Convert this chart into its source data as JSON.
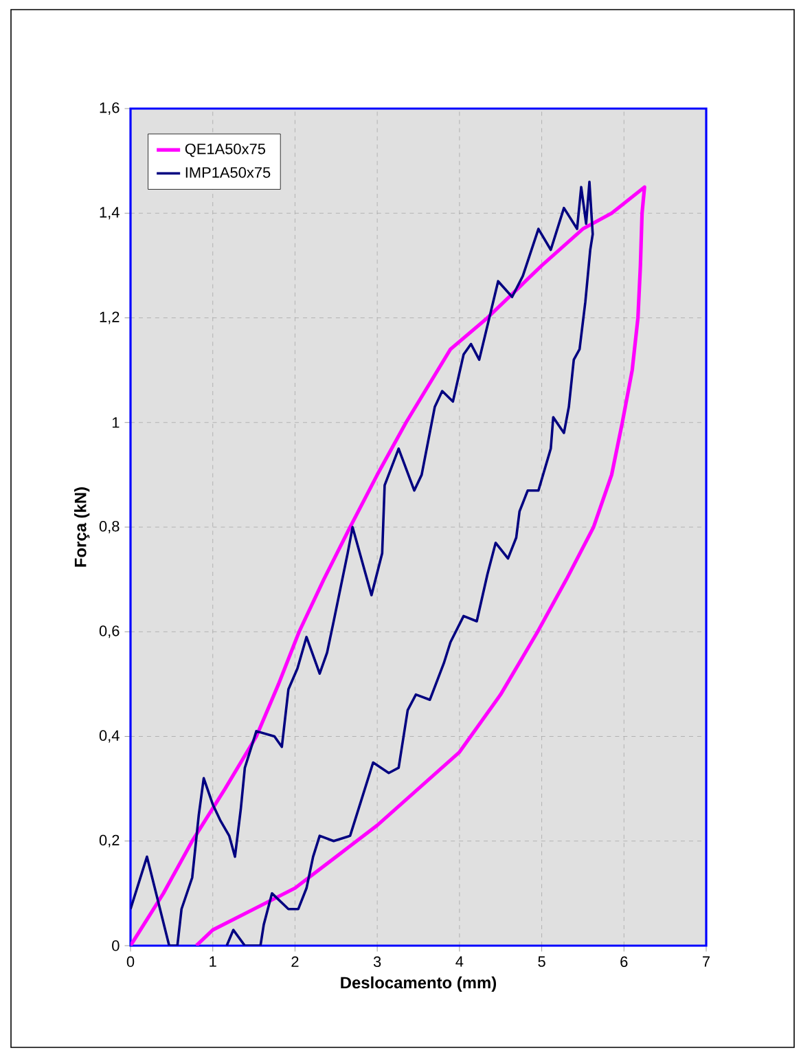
{
  "chart_data": {
    "type": "line",
    "xlabel": "Deslocamento (mm)",
    "ylabel": "Força (kN)",
    "xlim": [
      0,
      7
    ],
    "ylim": [
      0,
      1.6
    ],
    "xticks": [
      0,
      1,
      2,
      3,
      4,
      5,
      6,
      7
    ],
    "yticks": [
      {
        "value": 0,
        "label": "0"
      },
      {
        "value": 0.2,
        "label": "0,2"
      },
      {
        "value": 0.4,
        "label": "0,4"
      },
      {
        "value": 0.6,
        "label": "0,6"
      },
      {
        "value": 0.8,
        "label": "0,8"
      },
      {
        "value": 1,
        "label": "1"
      },
      {
        "value": 1.2,
        "label": "1,2"
      },
      {
        "value": 1.4,
        "label": "1,4"
      },
      {
        "value": 1.6,
        "label": "1,6"
      }
    ],
    "grid": true,
    "legend": "top left",
    "marker": "none",
    "line_style": "solid",
    "series": [
      {
        "name": "QE1A50x75",
        "color": "#ff00ff",
        "x": [
          0,
          0.4,
          0.75,
          1.15,
          1.53,
          1.8,
          2.05,
          2.35,
          2.67,
          3,
          3.35,
          3.89,
          4.34,
          5,
          5.5,
          5.85,
          6.25,
          6.22,
          6.2,
          6.17,
          6.1,
          5.98,
          5.85,
          5.63,
          5.3,
          4.95,
          4.5,
          4,
          3.5,
          3,
          2.5,
          2,
          1.5,
          1,
          0.8
        ],
        "values": [
          0,
          0.1,
          0.2,
          0.3,
          0.4,
          0.5,
          0.6,
          0.7,
          0.8,
          0.9,
          1,
          1.14,
          1.2,
          1.3,
          1.37,
          1.4,
          1.45,
          1.4,
          1.3,
          1.2,
          1.1,
          1,
          0.9,
          0.8,
          0.7,
          0.6,
          0.48,
          0.37,
          0.3,
          0.23,
          0.17,
          0.11,
          0.07,
          0.03,
          0
        ]
      },
      {
        "name": "IMP1A50x75",
        "color": "#000080",
        "x": [
          0,
          0.2,
          0.47,
          0.57,
          0.62,
          0.75,
          0.83,
          0.89,
          1,
          1.09,
          1.2,
          1.27,
          1.34,
          1.39,
          1.53,
          1.75,
          1.84,
          1.92,
          2.03,
          2.14,
          2.3,
          2.39,
          2.47,
          2.64,
          2.7,
          2.93,
          3.06,
          3.09,
          3.26,
          3.45,
          3.54,
          3.7,
          3.79,
          3.92,
          4.05,
          4.14,
          4.24,
          4.47,
          4.64,
          4.77,
          4.96,
          5.11,
          5.27,
          5.43,
          5.48,
          5.54,
          5.58,
          5.62,
          5.59,
          5.53,
          5.46,
          5.39,
          5.33,
          5.27,
          5.14,
          5.11,
          4.96,
          4.83,
          4.73,
          4.69,
          4.59,
          4.44,
          4.34,
          4.21,
          4.05,
          3.89,
          3.81,
          3.64,
          3.47,
          3.37,
          3.26,
          3.14,
          2.95,
          2.81,
          2.67,
          2.47,
          2.3,
          2.22,
          2.14,
          2.04,
          1.92,
          1.72,
          1.62,
          1.58,
          1.39,
          1.25,
          1.17
        ],
        "values": [
          0.07,
          0.17,
          0,
          0,
          0.07,
          0.13,
          0.25,
          0.32,
          0.27,
          0.24,
          0.21,
          0.17,
          0.26,
          0.34,
          0.41,
          0.4,
          0.38,
          0.49,
          0.53,
          0.59,
          0.52,
          0.56,
          0.62,
          0.75,
          0.8,
          0.67,
          0.75,
          0.88,
          0.95,
          0.87,
          0.9,
          1.03,
          1.06,
          1.04,
          1.13,
          1.15,
          1.12,
          1.27,
          1.24,
          1.28,
          1.37,
          1.33,
          1.41,
          1.37,
          1.45,
          1.38,
          1.46,
          1.36,
          1.33,
          1.23,
          1.14,
          1.12,
          1.03,
          0.98,
          1.01,
          0.95,
          0.87,
          0.87,
          0.83,
          0.78,
          0.74,
          0.77,
          0.71,
          0.62,
          0.63,
          0.58,
          0.54,
          0.47,
          0.48,
          0.45,
          0.34,
          0.33,
          0.35,
          0.28,
          0.21,
          0.2,
          0.21,
          0.17,
          0.11,
          0.07,
          0.07,
          0.1,
          0.04,
          0,
          0,
          0.03,
          0
        ]
      }
    ]
  }
}
